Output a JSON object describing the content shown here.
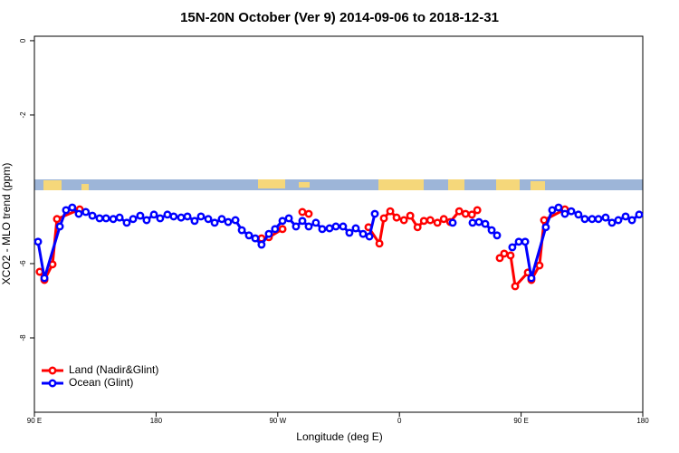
{
  "chart_data": {
    "type": "line",
    "title": "15N-20N October (Ver 9)   2014-09-06 to 2018-12-31",
    "xlabel": "Longitude (deg E)",
    "ylabel": "XCO2 - MLO trend (ppm)",
    "xlim": [
      90,
      540
    ],
    "xticks": [
      {
        "value": 90,
        "label": "90 E"
      },
      180,
      {
        "value": 270,
        "label": "90 W"
      },
      {
        "value": 360,
        "label": "0"
      },
      {
        "value": 450,
        "label": "90 E"
      },
      {
        "value": 540,
        "label": "180"
      }
    ],
    "ylim": [
      -10,
      0.12
    ],
    "yticks": [
      0,
      -2,
      -6,
      -8
    ],
    "legend": "bottomleft",
    "series": [
      {
        "name": "Land (Nadir&Glint)",
        "color": "#ff0000",
        "x": [
          93.9,
          97.4,
          103.4,
          106.7,
          123.5,
          null,
          258,
          263.4,
          273.5,
          null,
          288.2,
          292.9,
          null,
          337.1,
          345.2,
          348.5,
          353.2,
          357.9,
          363.3,
          368,
          373.4,
          378.1,
          382.8,
          388.1,
          392.8,
          397.5,
          404.2,
          408.9,
          413.6,
          417.6,
          null,
          434.2,
          437.5,
          442.2,
          445.6,
          455,
          457.6,
          463.6,
          467,
          482.4
        ],
        "values": [
          -6.22,
          -6.44,
          -6.02,
          -4.8,
          -4.54,
          null,
          -5.32,
          -5.29,
          -5.07,
          null,
          -4.61,
          -4.66,
          null,
          -5.02,
          -5.46,
          -4.78,
          -4.59,
          -4.76,
          -4.83,
          -4.71,
          -5.02,
          -4.85,
          -4.83,
          -4.9,
          -4.8,
          -4.88,
          -4.59,
          -4.66,
          -4.68,
          -4.56,
          null,
          -5.85,
          -5.73,
          -5.78,
          -6.61,
          -6.24,
          -6.44,
          -6.05,
          -4.83,
          -4.54
        ]
      },
      {
        "name": "Ocean (Glint)",
        "color": "#0000ff",
        "x": [
          92.7,
          97.4,
          108.8,
          113.4,
          118,
          122.8,
          128,
          132.9,
          138.2,
          143,
          148.3,
          153,
          158.3,
          163,
          168.3,
          173,
          178.4,
          183,
          188.4,
          193,
          198.5,
          203.2,
          208.5,
          213.2,
          218.6,
          223.3,
          228.6,
          233.3,
          238.7,
          243.4,
          248.7,
          253.4,
          258,
          263.4,
          268,
          273.5,
          278.2,
          283.5,
          288.2,
          292.9,
          298.2,
          302.9,
          308.3,
          313,
          318.3,
          323,
          327.7,
          333.1,
          337.8,
          341.8,
          null,
          399.4,
          null,
          414.1,
          418.8,
          423.5,
          428.2,
          432.2,
          null,
          443.5,
          448.3,
          453,
          457.6,
          468.3,
          473,
          477.7,
          482.4,
          487.1,
          492.4,
          497.1,
          502.5,
          507.2,
          512.5,
          517.2,
          521.9,
          527.3,
          532,
          537.3
        ],
        "values": [
          -5.41,
          -6.39,
          -5.0,
          -4.56,
          -4.49,
          -4.66,
          -4.61,
          -4.71,
          -4.78,
          -4.78,
          -4.8,
          -4.76,
          -4.9,
          -4.8,
          -4.71,
          -4.83,
          -4.68,
          -4.78,
          -4.68,
          -4.73,
          -4.76,
          -4.73,
          -4.85,
          -4.73,
          -4.8,
          -4.9,
          -4.8,
          -4.88,
          -4.83,
          -5.1,
          -5.24,
          -5.32,
          -5.49,
          -5.2,
          -5.07,
          -4.85,
          -4.78,
          -5.0,
          -4.85,
          -5.0,
          -4.9,
          -5.07,
          -5.05,
          -5.0,
          -5.0,
          -5.17,
          -5.05,
          -5.2,
          -5.27,
          -4.66,
          null,
          -4.9,
          null,
          -4.9,
          -4.88,
          -4.93,
          -5.1,
          -5.24,
          null,
          -5.56,
          -5.41,
          -5.41,
          -6.39,
          -5.02,
          -4.56,
          -4.49,
          -4.66,
          -4.59,
          -4.68,
          -4.8,
          -4.8,
          -4.8,
          -4.76,
          -4.9,
          -4.83,
          -4.73,
          -4.83,
          -4.68
        ]
      }
    ]
  }
}
